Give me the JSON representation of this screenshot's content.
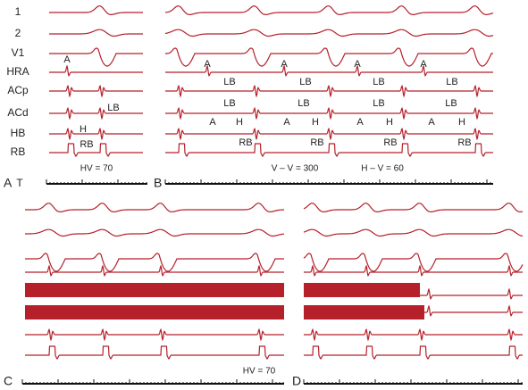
{
  "channel_labels": [
    "1",
    "2",
    "V1",
    "HRA",
    "ACp",
    "ACd",
    "HB",
    "RB",
    "T"
  ],
  "panels": [
    {
      "letter": "A",
      "annotations": [
        "A",
        "LB",
        "H",
        "RB"
      ],
      "measurements": [
        "HV = 70"
      ]
    },
    {
      "letter": "B",
      "annotations": [
        "A",
        "A",
        "A",
        "A",
        "LB",
        "LB",
        "LB",
        "LB",
        "LB",
        "LB",
        "LB",
        "LB",
        "A",
        "H",
        "A",
        "H",
        "A",
        "H",
        "A",
        "H",
        "RB",
        "RB",
        "RB",
        "RB"
      ],
      "measurements": [
        "V – V = 300",
        "H – V = 60"
      ]
    },
    {
      "letter": "C",
      "measurements": [
        "HV = 70"
      ]
    },
    {
      "letter": "D"
    }
  ]
}
